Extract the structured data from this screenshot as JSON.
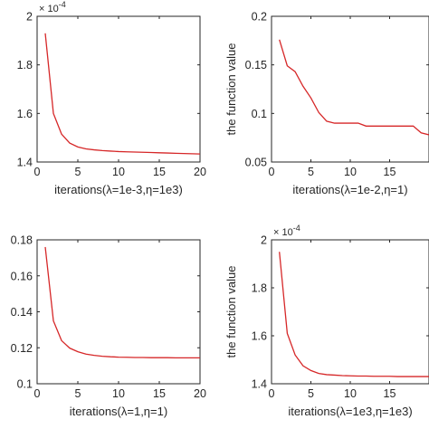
{
  "series_color": "#d62728",
  "chart_data": [
    {
      "type": "line",
      "ylabel": "",
      "xlabel_prefix": "iterations(",
      "xlabel_math": "λ=1e-3,η=1e3)",
      "exponent_label": "× 10",
      "exponent_power": "-4",
      "xlim": [
        0,
        20
      ],
      "ylim": [
        1.4,
        2.0
      ],
      "xticks": [
        0,
        5,
        10,
        15,
        20
      ],
      "yticks": [
        1.4,
        1.6,
        1.8,
        2.0
      ],
      "xtick_labels": [
        "0",
        "5",
        "10",
        "15",
        "20"
      ],
      "ytick_labels": [
        "1.4",
        "1.6",
        "1.8",
        "2"
      ],
      "x": [
        1,
        2,
        3,
        4,
        5,
        6,
        7,
        8,
        9,
        10,
        11,
        12,
        13,
        14,
        15,
        16,
        17,
        18,
        19,
        20
      ],
      "y": [
        1.93,
        1.6,
        1.515,
        1.478,
        1.462,
        1.454,
        1.45,
        1.447,
        1.445,
        1.443,
        1.442,
        1.441,
        1.44,
        1.439,
        1.438,
        1.437,
        1.436,
        1.435,
        1.434,
        1.433
      ]
    },
    {
      "type": "line",
      "ylabel": "the function value",
      "xlabel_prefix": "iterations(",
      "xlabel_math": "λ=1e-2,η=1)",
      "exponent_label": "",
      "exponent_power": "",
      "xlim": [
        0,
        20
      ],
      "ylim": [
        0.05,
        0.2
      ],
      "xticks": [
        0,
        5,
        10,
        15
      ],
      "yticks": [
        0.05,
        0.1,
        0.15,
        0.2
      ],
      "xtick_labels": [
        "0",
        "5",
        "10",
        "15"
      ],
      "ytick_labels": [
        "0.05",
        "0.1",
        "0.15",
        "0.2"
      ],
      "x": [
        1,
        2,
        3,
        4,
        5,
        6,
        7,
        8,
        9,
        10,
        11,
        12,
        13,
        14,
        15,
        16,
        17,
        18,
        19,
        20
      ],
      "y": [
        0.176,
        0.149,
        0.143,
        0.128,
        0.116,
        0.101,
        0.092,
        0.09,
        0.09,
        0.09,
        0.09,
        0.087,
        0.087,
        0.087,
        0.087,
        0.087,
        0.087,
        0.087,
        0.08,
        0.078
      ]
    },
    {
      "type": "line",
      "ylabel": "",
      "xlabel_prefix": "iterations(",
      "xlabel_math": "λ=1,η=1)",
      "exponent_label": "",
      "exponent_power": "",
      "xlim": [
        0,
        20
      ],
      "ylim": [
        0.1,
        0.18
      ],
      "xticks": [
        0,
        5,
        10,
        15,
        20
      ],
      "yticks": [
        0.1,
        0.12,
        0.14,
        0.16,
        0.18
      ],
      "xtick_labels": [
        "0",
        "5",
        "10",
        "15",
        "20"
      ],
      "ytick_labels": [
        "0.1",
        "0.12",
        "0.14",
        "0.16",
        "0.18"
      ],
      "x": [
        1,
        2,
        3,
        4,
        5,
        6,
        7,
        8,
        9,
        10,
        11,
        12,
        13,
        14,
        15,
        16,
        17,
        18,
        19,
        20
      ],
      "y": [
        0.176,
        0.135,
        0.124,
        0.1198,
        0.1178,
        0.1165,
        0.1158,
        0.1153,
        0.115,
        0.1148,
        0.1147,
        0.1146,
        0.1146,
        0.1145,
        0.1145,
        0.1145,
        0.1144,
        0.1144,
        0.1144,
        0.1144
      ]
    },
    {
      "type": "line",
      "ylabel": "the function value",
      "xlabel_prefix": "iterations(",
      "xlabel_math": "λ=1e3,η=1e3)",
      "exponent_label": "× 10",
      "exponent_power": "-4",
      "xlim": [
        0,
        20
      ],
      "ylim": [
        1.4,
        2.0
      ],
      "xticks": [
        0,
        5,
        10,
        15
      ],
      "yticks": [
        1.4,
        1.6,
        1.8,
        2.0
      ],
      "xtick_labels": [
        "0",
        "5",
        "10",
        "15"
      ],
      "ytick_labels": [
        "1.4",
        "1.6",
        "1.8",
        "2"
      ],
      "x": [
        1,
        2,
        3,
        4,
        5,
        6,
        7,
        8,
        9,
        10,
        11,
        12,
        13,
        14,
        15,
        16,
        17,
        18,
        19,
        20
      ],
      "y": [
        1.95,
        1.61,
        1.52,
        1.475,
        1.455,
        1.443,
        1.438,
        1.436,
        1.434,
        1.433,
        1.432,
        1.432,
        1.431,
        1.431,
        1.431,
        1.43,
        1.43,
        1.43,
        1.43,
        1.43
      ]
    }
  ]
}
